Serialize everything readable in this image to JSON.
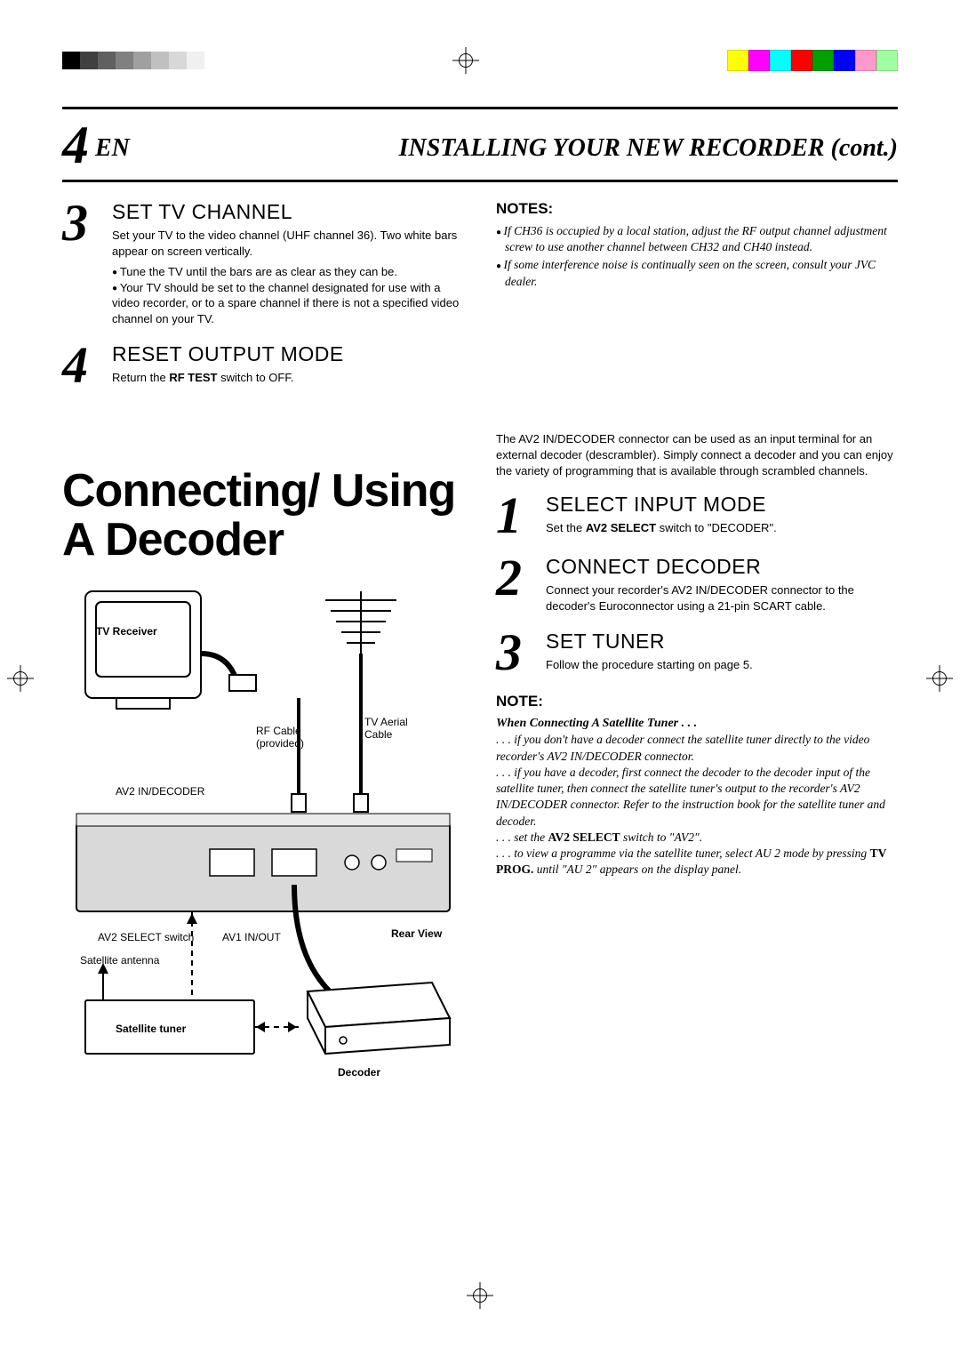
{
  "print_marks": {
    "gray_squares": [
      "#000000",
      "#404040",
      "#606060",
      "#808080",
      "#a0a0a0",
      "#c0c0c0",
      "#d8d8d8",
      "#f0f0f0"
    ],
    "color_squares": [
      "#ffff00",
      "#ff00ff",
      "#00ffff",
      "#ff0000",
      "#00a000",
      "#0000ff",
      "#ff99cc",
      "#a0ffa0"
    ]
  },
  "header": {
    "page_num": "4",
    "lang": "EN",
    "title": "INSTALLING YOUR NEW RECORDER (cont.)"
  },
  "left_steps": [
    {
      "n": "3",
      "title": "SET TV CHANNEL",
      "text": "Set your TV to the video channel (UHF channel 36). Two white bars appear on screen vertically.",
      "bullets": [
        "Tune the TV until the bars are as clear as they can be.",
        "Your TV should be set to the channel designated for use with a video recorder, or to a spare channel if there is not a specified video channel on your TV."
      ]
    },
    {
      "n": "4",
      "title": "RESET OUTPUT MODE",
      "text": "Return the RF TEST switch to OFF.",
      "bullets": []
    }
  ],
  "notes_top": {
    "title": "NOTES:",
    "items": [
      "If CH36 is occupied by a local station, adjust the RF output channel adjustment screw to use another channel between CH32 and CH40 instead.",
      "If some interference noise is continually seen on the screen, consult your JVC dealer."
    ]
  },
  "big_title": "Connecting/ Using A Decoder",
  "decoder_intro": "The AV2 IN/DECODER connector can be used as an input terminal for an external decoder (descrambler). Simply connect a decoder and you can enjoy the variety of programming that is available through scrambled channels.",
  "decoder_steps": [
    {
      "n": "1",
      "title": "SELECT INPUT MODE",
      "text": "Set the AV2 SELECT switch to \"DECODER\"."
    },
    {
      "n": "2",
      "title": "CONNECT DECODER",
      "text": "Connect your recorder's AV2 IN/DECODER connector to the decoder's Euroconnector using a 21-pin SCART cable."
    },
    {
      "n": "3",
      "title": "SET TUNER",
      "text": "Follow the procedure starting on page 5."
    }
  ],
  "note_bottom": {
    "title": "NOTE:",
    "subtitle": "When Connecting A Satellite Tuner . . .",
    "lines": [
      ". . . if you don't have a decoder connect the satellite tuner directly to the video recorder's AV2 IN/DECODER connector.",
      ". . . if you have a decoder, first connect the decoder to the decoder input of the satellite tuner, then connect the satellite tuner's output to the recorder's AV2 IN/DECODER connector. Refer to the instruction book for the satellite tuner and decoder.",
      ". . . set the AV2 SELECT switch to \"AV2\".",
      ". . . to view a programme via the satellite tuner, select AU 2 mode by pressing TV PROG. until \"AU 2\" appears on the display panel."
    ]
  },
  "diagram": {
    "tv_receiver": "TV Receiver",
    "rf_cable": "RF Cable (provided)",
    "tv_aerial": "TV Aerial Cable",
    "av2_in": "AV2 IN/DECODER",
    "av2_switch": "AV2 SELECT switch",
    "av1": "AV1 IN/OUT",
    "rear": "Rear View",
    "sat_antenna": "Satellite antenna",
    "sat_tuner": "Satellite tuner",
    "decoder": "Decoder"
  }
}
